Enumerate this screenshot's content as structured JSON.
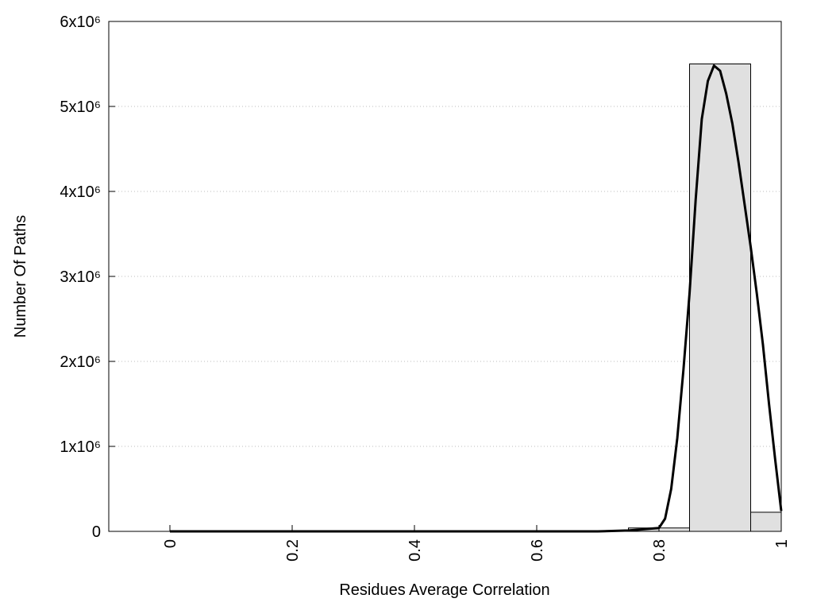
{
  "chart_data": {
    "type": "histogram",
    "x_label": "Residues Average Correlation",
    "y_label": "Number Of Paths",
    "bins": [
      0.75,
      0.85,
      0.95,
      1.0
    ],
    "counts": [
      40000,
      5500000,
      225000
    ],
    "color": "#e0e0e0",
    "line": {
      "color": "#000000",
      "x": [
        0,
        0.7,
        0.75,
        0.8,
        0.81,
        0.82,
        0.83,
        0.84,
        0.85,
        0.86,
        0.87,
        0.88,
        0.89,
        0.9,
        0.91,
        0.92,
        0.93,
        0.94,
        0.95,
        0.96,
        0.97,
        0.98,
        0.99,
        1.0
      ],
      "values": [
        0,
        0,
        10000,
        40000,
        150000,
        500000,
        1100000,
        1900000,
        2800000,
        3900000,
        4850000,
        5300000,
        5480000,
        5420000,
        5150000,
        4800000,
        4350000,
        3850000,
        3350000,
        2800000,
        2200000,
        1500000,
        850000,
        240000
      ]
    },
    "xlim": [
      -0.1,
      1.0
    ],
    "xticks": [
      0,
      0.2,
      0.4,
      0.6,
      0.8,
      1
    ],
    "ylim": [
      0,
      6000000
    ],
    "yticks": [
      0,
      {
        "value": 1000000,
        "label": "1x10⁶"
      },
      {
        "value": 2000000,
        "label": "2x10⁶"
      },
      {
        "value": 3000000,
        "label": "3x10⁶"
      },
      {
        "value": 4000000,
        "label": "4x10⁶"
      },
      {
        "value": 5000000,
        "label": "5x10⁶"
      },
      {
        "value": 6000000,
        "label": "6x10⁶"
      }
    ],
    "grid": true
  }
}
